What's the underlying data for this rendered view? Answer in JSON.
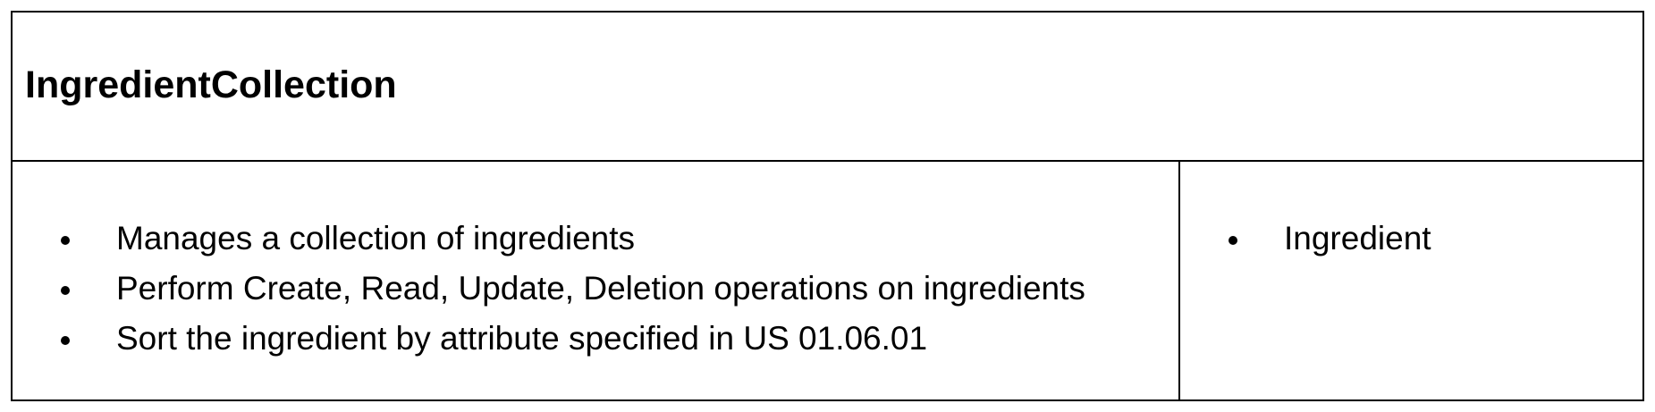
{
  "card": {
    "class_name": "IngredientCollection",
    "responsibilities": [
      "Manages a collection of ingredients",
      "Perform Create, Read, Update, Deletion operations on ingredients",
      "Sort the ingredient by attribute specified in US 01.06.01"
    ],
    "collaborators": [
      "Ingredient"
    ]
  }
}
